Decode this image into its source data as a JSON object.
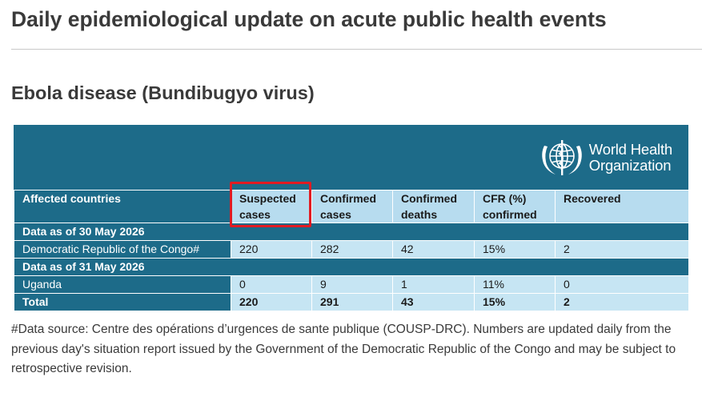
{
  "page": {
    "title": "Daily epidemiological update on acute public health events",
    "section_title": "Ebola disease (Bundibugyo virus)"
  },
  "logo": {
    "line1": "World Health",
    "line2": "Organization",
    "icon": "who-emblem-icon"
  },
  "table": {
    "headers": [
      {
        "line1": "Affected countries",
        "line2": ""
      },
      {
        "line1": "Suspected",
        "line2": "cases"
      },
      {
        "line1": "Confirmed",
        "line2": "cases"
      },
      {
        "line1": "Confirmed",
        "line2": "deaths"
      },
      {
        "line1": "CFR (%)",
        "line2": "confirmed"
      },
      {
        "line1": "Recovered",
        "line2": ""
      }
    ],
    "band1": "Data as of 30 May 2026",
    "row1": [
      "Democratic Republic of the Congo#",
      "220",
      "282",
      "42",
      "15%",
      "2"
    ],
    "band2": "Data as of 31 May 2026",
    "row2": [
      "Uganda",
      "0",
      "9",
      "1",
      "11%",
      "0"
    ],
    "total": [
      "Total",
      "220",
      "291",
      "43",
      "15%",
      "2"
    ]
  },
  "note": "#Data source: Centre des opérations d’urgences de sante publique (COUSP-DRC). Numbers are updated daily from the previous day's situation report issued by the Government of the Democratic Republic of the Congo and may be subject to retrospective revision.",
  "colors": {
    "header_blue": "#1d6b89",
    "cell_light_blue": "#c6e5f3",
    "highlight_red": "#e11b22"
  }
}
